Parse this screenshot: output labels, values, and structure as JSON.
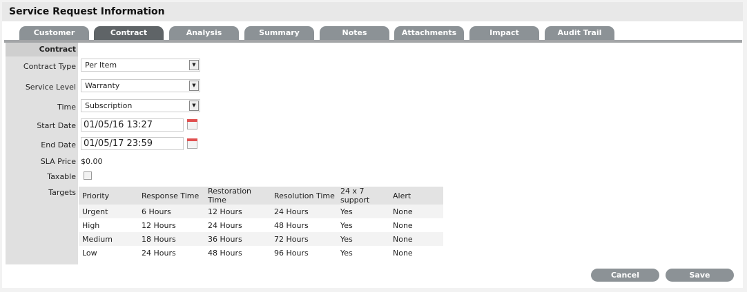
{
  "header": {
    "title": "Service Request Information"
  },
  "tabs": [
    "Customer",
    "Contract",
    "Analysis",
    "Summary",
    "Notes",
    "Attachments",
    "Impact",
    "Audit Trail"
  ],
  "active_tab": "Contract",
  "section": "Contract",
  "fields": {
    "contract_type": {
      "label": "Contract Type",
      "value": "Per Item"
    },
    "service_level": {
      "label": "Service Level",
      "value": "Warranty"
    },
    "time": {
      "label": "Time",
      "value": "Subscription"
    },
    "start_date": {
      "label": "Start Date",
      "value": "01/05/16 13:27"
    },
    "end_date": {
      "label": "End Date",
      "value": "01/05/17 23:59"
    },
    "sla_price": {
      "label": "SLA Price",
      "value": "$0.00"
    },
    "taxable": {
      "label": "Taxable",
      "checked": false
    },
    "targets": {
      "label": "Targets"
    }
  },
  "targets": {
    "headers": [
      "Priority",
      "Response Time",
      "Restoration Time",
      "Resolution Time",
      "24 x 7 support",
      "Alert"
    ],
    "rows": [
      [
        "Urgent",
        "6 Hours",
        "12 Hours",
        "24 Hours",
        "Yes",
        "None"
      ],
      [
        "High",
        "12 Hours",
        "24 Hours",
        "48 Hours",
        "Yes",
        "None"
      ],
      [
        "Medium",
        "18 Hours",
        "36 Hours",
        "72 Hours",
        "Yes",
        "None"
      ],
      [
        "Low",
        "24 Hours",
        "48 Hours",
        "96 Hours",
        "Yes",
        "None"
      ]
    ]
  },
  "buttons": {
    "cancel": "Cancel",
    "save": "Save"
  }
}
